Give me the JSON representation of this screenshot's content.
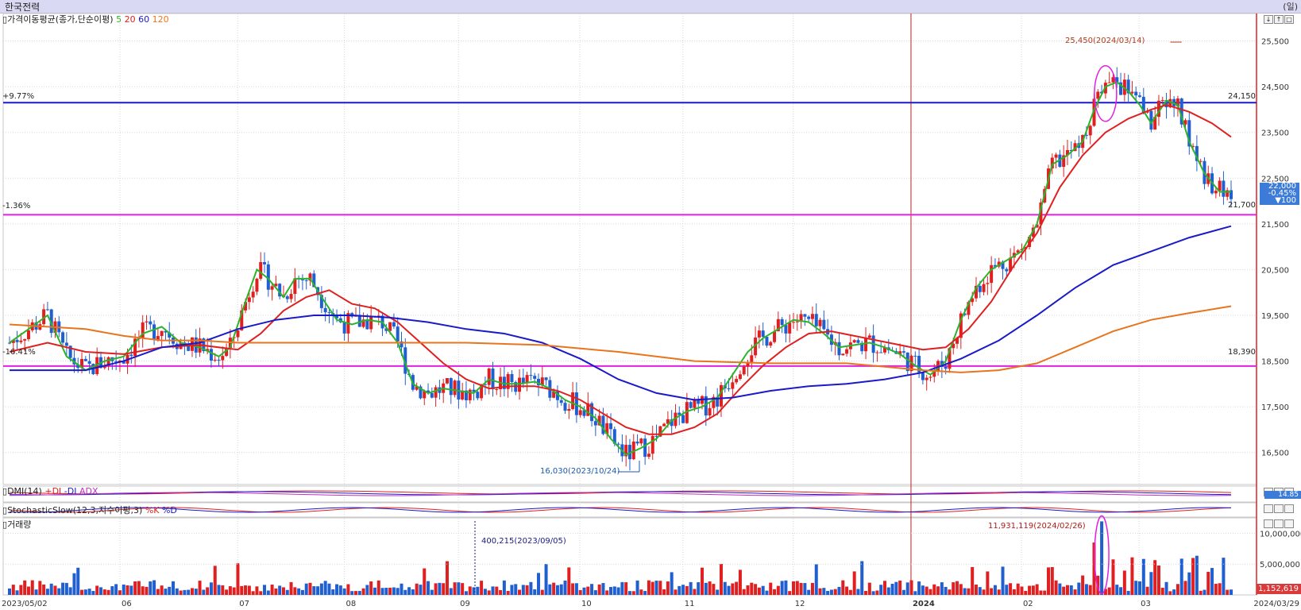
{
  "window": {
    "stock_name": "한국전력",
    "period_label": "(일)"
  },
  "indicators": {
    "ma_label": "가격이동평균(종가,단순이평)",
    "ma_periods": [
      {
        "label": "5",
        "color": "#2bb42b"
      },
      {
        "label": "20",
        "color": "#e02020"
      },
      {
        "label": "60",
        "color": "#1a1ac8"
      },
      {
        "label": "120",
        "color": "#e8741e"
      }
    ],
    "dmi_label": "DMI(14)",
    "dmi_series": [
      {
        "label": "+DI",
        "color": "#e02020"
      },
      {
        "label": "-DI",
        "color": "#1a1ac8"
      },
      {
        "label": "ADX",
        "color": "#c02ec0"
      }
    ],
    "stoch_label": "StochasticSlow(12,3,지수이평,3)",
    "stoch_series": [
      {
        "label": "%K",
        "color": "#e02020"
      },
      {
        "label": "%D",
        "color": "#1a1ac8"
      }
    ],
    "volume_label": "거래량"
  },
  "annotations": {
    "high": "25,450(2024/03/14)",
    "low": "16,030(2023/10/24)",
    "volume_max": "11,931,119(2024/02/26)",
    "volume_min": "400,215(2023/09/05)",
    "upper_pct": "+9.77%",
    "lower_pct": "-1.36%",
    "bottom_pct": "-16.41%",
    "line_24150": "24,150",
    "line_21700": "21,700",
    "line_18390": "18,390"
  },
  "current": {
    "price": "22,000",
    "change_pct": "-0.45%",
    "change": "▼100"
  },
  "dmi_value": "14.85",
  "volume_current": "1,152,619",
  "controls": [
    "↓",
    "↑",
    "□"
  ],
  "chart_data": {
    "type": "candlestick",
    "y_range": [
      15800,
      26100
    ],
    "y_ticks": [
      "25,500",
      "24,500",
      "23,500",
      "22,500",
      "21,500",
      "20,500",
      "19,500",
      "18,500",
      "17,500",
      "16,500"
    ],
    "y_tick_values": [
      25500,
      24500,
      23500,
      22500,
      21500,
      20500,
      19500,
      18500,
      17500,
      16500
    ],
    "volume_ticks": [
      "10,000,000",
      "5,000,000"
    ],
    "volume_tick_values": [
      10000000,
      5000000
    ],
    "x_labels": [
      "2023/05/02",
      "06",
      "07",
      "08",
      "09",
      "10",
      "11",
      "12",
      "2024",
      "02",
      "03",
      "2024/03/29"
    ],
    "x_label_dates": [
      "2023-05-02",
      "2023-06-01",
      "2023-07-03",
      "2023-08-01",
      "2023-09-01",
      "2023-10-04",
      "2023-11-01",
      "2023-12-01",
      "2024-01-02",
      "2024-02-01",
      "2024-03-04",
      "2024-03-29"
    ],
    "horizontal_lines": [
      {
        "value": 24150,
        "color": "#1a1ac8"
      },
      {
        "value": 21700,
        "color": "#e020e0"
      },
      {
        "value": 18390,
        "color": "#e020e0"
      }
    ],
    "year_divider": "2024-01-02",
    "series": [
      {
        "name": "5",
        "color": "#2bb42b",
        "points": [
          [
            0,
            18900
          ],
          [
            5,
            19200
          ],
          [
            10,
            19500
          ],
          [
            15,
            18600
          ],
          [
            20,
            18300
          ],
          [
            25,
            18500
          ],
          [
            30,
            18600
          ],
          [
            35,
            19100
          ],
          [
            40,
            19250
          ],
          [
            45,
            18900
          ],
          [
            50,
            18800
          ],
          [
            55,
            18600
          ],
          [
            58,
            18800
          ],
          [
            62,
            19800
          ],
          [
            65,
            20500
          ],
          [
            68,
            20300
          ],
          [
            72,
            19900
          ],
          [
            75,
            20300
          ],
          [
            79,
            20300
          ],
          [
            82,
            19900
          ],
          [
            86,
            19400
          ],
          [
            90,
            19300
          ],
          [
            94,
            19400
          ],
          [
            98,
            19350
          ],
          [
            102,
            18900
          ],
          [
            106,
            18000
          ],
          [
            110,
            17800
          ],
          [
            114,
            17900
          ],
          [
            118,
            17850
          ],
          [
            122,
            17800
          ],
          [
            126,
            18100
          ],
          [
            130,
            18000
          ],
          [
            134,
            18000
          ],
          [
            138,
            18050
          ],
          [
            142,
            17900
          ],
          [
            146,
            17650
          ],
          [
            150,
            17500
          ],
          [
            154,
            17250
          ],
          [
            158,
            16800
          ],
          [
            162,
            16450
          ],
          [
            166,
            16600
          ],
          [
            170,
            16800
          ],
          [
            174,
            17200
          ],
          [
            178,
            17400
          ],
          [
            182,
            17500
          ],
          [
            186,
            17700
          ],
          [
            190,
            18200
          ],
          [
            194,
            18700
          ],
          [
            198,
            19000
          ],
          [
            202,
            19200
          ],
          [
            206,
            19400
          ],
          [
            210,
            19350
          ],
          [
            214,
            19100
          ],
          [
            218,
            18800
          ],
          [
            222,
            18850
          ],
          [
            226,
            18900
          ],
          [
            230,
            18800
          ],
          [
            234,
            18650
          ],
          [
            238,
            18400
          ],
          [
            242,
            18200
          ],
          [
            246,
            18500
          ],
          [
            250,
            19400
          ],
          [
            254,
            20100
          ],
          [
            258,
            20500
          ],
          [
            262,
            20700
          ],
          [
            266,
            20900
          ],
          [
            270,
            21500
          ],
          [
            274,
            22800
          ],
          [
            278,
            23000
          ],
          [
            282,
            23300
          ],
          [
            285,
            24000
          ],
          [
            288,
            24500
          ],
          [
            291,
            24600
          ],
          [
            294,
            24400
          ],
          [
            297,
            24100
          ],
          [
            300,
            23700
          ],
          [
            304,
            24200
          ],
          [
            307,
            24100
          ],
          [
            310,
            23300
          ],
          [
            314,
            22600
          ],
          [
            318,
            22200
          ],
          [
            321,
            22200
          ]
        ]
      },
      {
        "name": "20",
        "color": "#e02020",
        "points": [
          [
            0,
            18700
          ],
          [
            10,
            18900
          ],
          [
            20,
            18700
          ],
          [
            30,
            18650
          ],
          [
            40,
            18800
          ],
          [
            50,
            18850
          ],
          [
            60,
            18750
          ],
          [
            66,
            19100
          ],
          [
            72,
            19600
          ],
          [
            78,
            19900
          ],
          [
            84,
            20050
          ],
          [
            90,
            19750
          ],
          [
            96,
            19650
          ],
          [
            102,
            19350
          ],
          [
            108,
            18900
          ],
          [
            114,
            18450
          ],
          [
            120,
            18100
          ],
          [
            126,
            17900
          ],
          [
            132,
            17950
          ],
          [
            138,
            17950
          ],
          [
            144,
            17850
          ],
          [
            150,
            17650
          ],
          [
            156,
            17350
          ],
          [
            162,
            17050
          ],
          [
            168,
            16900
          ],
          [
            174,
            16900
          ],
          [
            180,
            17050
          ],
          [
            186,
            17350
          ],
          [
            192,
            17900
          ],
          [
            198,
            18400
          ],
          [
            204,
            18800
          ],
          [
            210,
            19100
          ],
          [
            216,
            19150
          ],
          [
            222,
            19050
          ],
          [
            228,
            18950
          ],
          [
            234,
            18850
          ],
          [
            240,
            18750
          ],
          [
            246,
            18800
          ],
          [
            252,
            19200
          ],
          [
            258,
            19800
          ],
          [
            264,
            20600
          ],
          [
            270,
            21300
          ],
          [
            276,
            22300
          ],
          [
            282,
            23000
          ],
          [
            288,
            23500
          ],
          [
            294,
            23800
          ],
          [
            300,
            24000
          ],
          [
            304,
            24100
          ],
          [
            310,
            23950
          ],
          [
            316,
            23700
          ],
          [
            321,
            23400
          ]
        ]
      },
      {
        "name": "60",
        "color": "#1a1ac8",
        "points": [
          [
            0,
            18300
          ],
          [
            20,
            18300
          ],
          [
            30,
            18500
          ],
          [
            40,
            18800
          ],
          [
            50,
            18900
          ],
          [
            60,
            19200
          ],
          [
            70,
            19400
          ],
          [
            80,
            19500
          ],
          [
            90,
            19500
          ],
          [
            100,
            19450
          ],
          [
            110,
            19350
          ],
          [
            120,
            19200
          ],
          [
            130,
            19100
          ],
          [
            140,
            18900
          ],
          [
            150,
            18550
          ],
          [
            160,
            18100
          ],
          [
            170,
            17800
          ],
          [
            180,
            17650
          ],
          [
            190,
            17700
          ],
          [
            200,
            17850
          ],
          [
            210,
            17950
          ],
          [
            220,
            18000
          ],
          [
            230,
            18100
          ],
          [
            240,
            18250
          ],
          [
            250,
            18550
          ],
          [
            260,
            18950
          ],
          [
            270,
            19500
          ],
          [
            280,
            20100
          ],
          [
            290,
            20600
          ],
          [
            300,
            20900
          ],
          [
            310,
            21200
          ],
          [
            321,
            21450
          ]
        ]
      },
      {
        "name": "120",
        "color": "#e8741e",
        "points": [
          [
            0,
            19300
          ],
          [
            20,
            19200
          ],
          [
            30,
            19050
          ],
          [
            40,
            18950
          ],
          [
            50,
            18950
          ],
          [
            60,
            18900
          ],
          [
            80,
            18900
          ],
          [
            100,
            18900
          ],
          [
            120,
            18900
          ],
          [
            140,
            18850
          ],
          [
            160,
            18700
          ],
          [
            180,
            18500
          ],
          [
            200,
            18450
          ],
          [
            220,
            18450
          ],
          [
            240,
            18300
          ],
          [
            250,
            18250
          ],
          [
            260,
            18300
          ],
          [
            270,
            18450
          ],
          [
            280,
            18800
          ],
          [
            290,
            19150
          ],
          [
            300,
            19400
          ],
          [
            310,
            19550
          ],
          [
            321,
            19700
          ]
        ]
      }
    ]
  }
}
